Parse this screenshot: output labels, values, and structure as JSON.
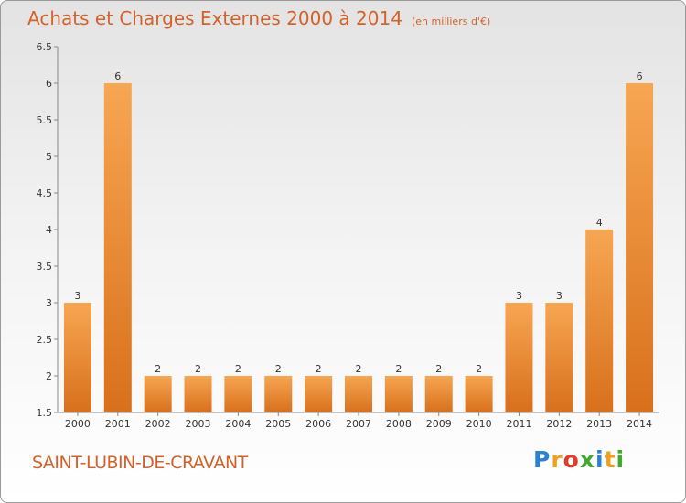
{
  "title": "Achats et Charges Externes 2000 à 2014",
  "subtitle": "(en milliers d'€)",
  "commune": "SAINT-LUBIN-DE-CRAVANT",
  "logo": {
    "letters": [
      "P",
      "r",
      "o",
      "x",
      "i",
      "t",
      "i"
    ],
    "colors": [
      "#2d7fd1",
      "#f0a020",
      "#e03c2a",
      "#44a830",
      "#2d7fd1",
      "#f0a020",
      "#44a830"
    ]
  },
  "chart_data": {
    "type": "bar",
    "categories": [
      "2000",
      "2001",
      "2002",
      "2003",
      "2004",
      "2005",
      "2006",
      "2007",
      "2008",
      "2009",
      "2010",
      "2011",
      "2012",
      "2013",
      "2014"
    ],
    "values": [
      3,
      6,
      2,
      2,
      2,
      2,
      2,
      2,
      2,
      2,
      2,
      3,
      3,
      4,
      6
    ],
    "data_labels": [
      "3",
      "6",
      "2",
      "2",
      "2",
      "2",
      "2",
      "2",
      "2",
      "2",
      "2",
      "3",
      "3",
      "4",
      "6"
    ],
    "ylim": [
      1.5,
      6.5
    ],
    "yticks": [
      "1.5",
      "2",
      "2.5",
      "3",
      "3.5",
      "4",
      "4.5",
      "5",
      "5.5",
      "6",
      "6.5"
    ],
    "grid": false,
    "bar_color": "#f0882a"
  }
}
